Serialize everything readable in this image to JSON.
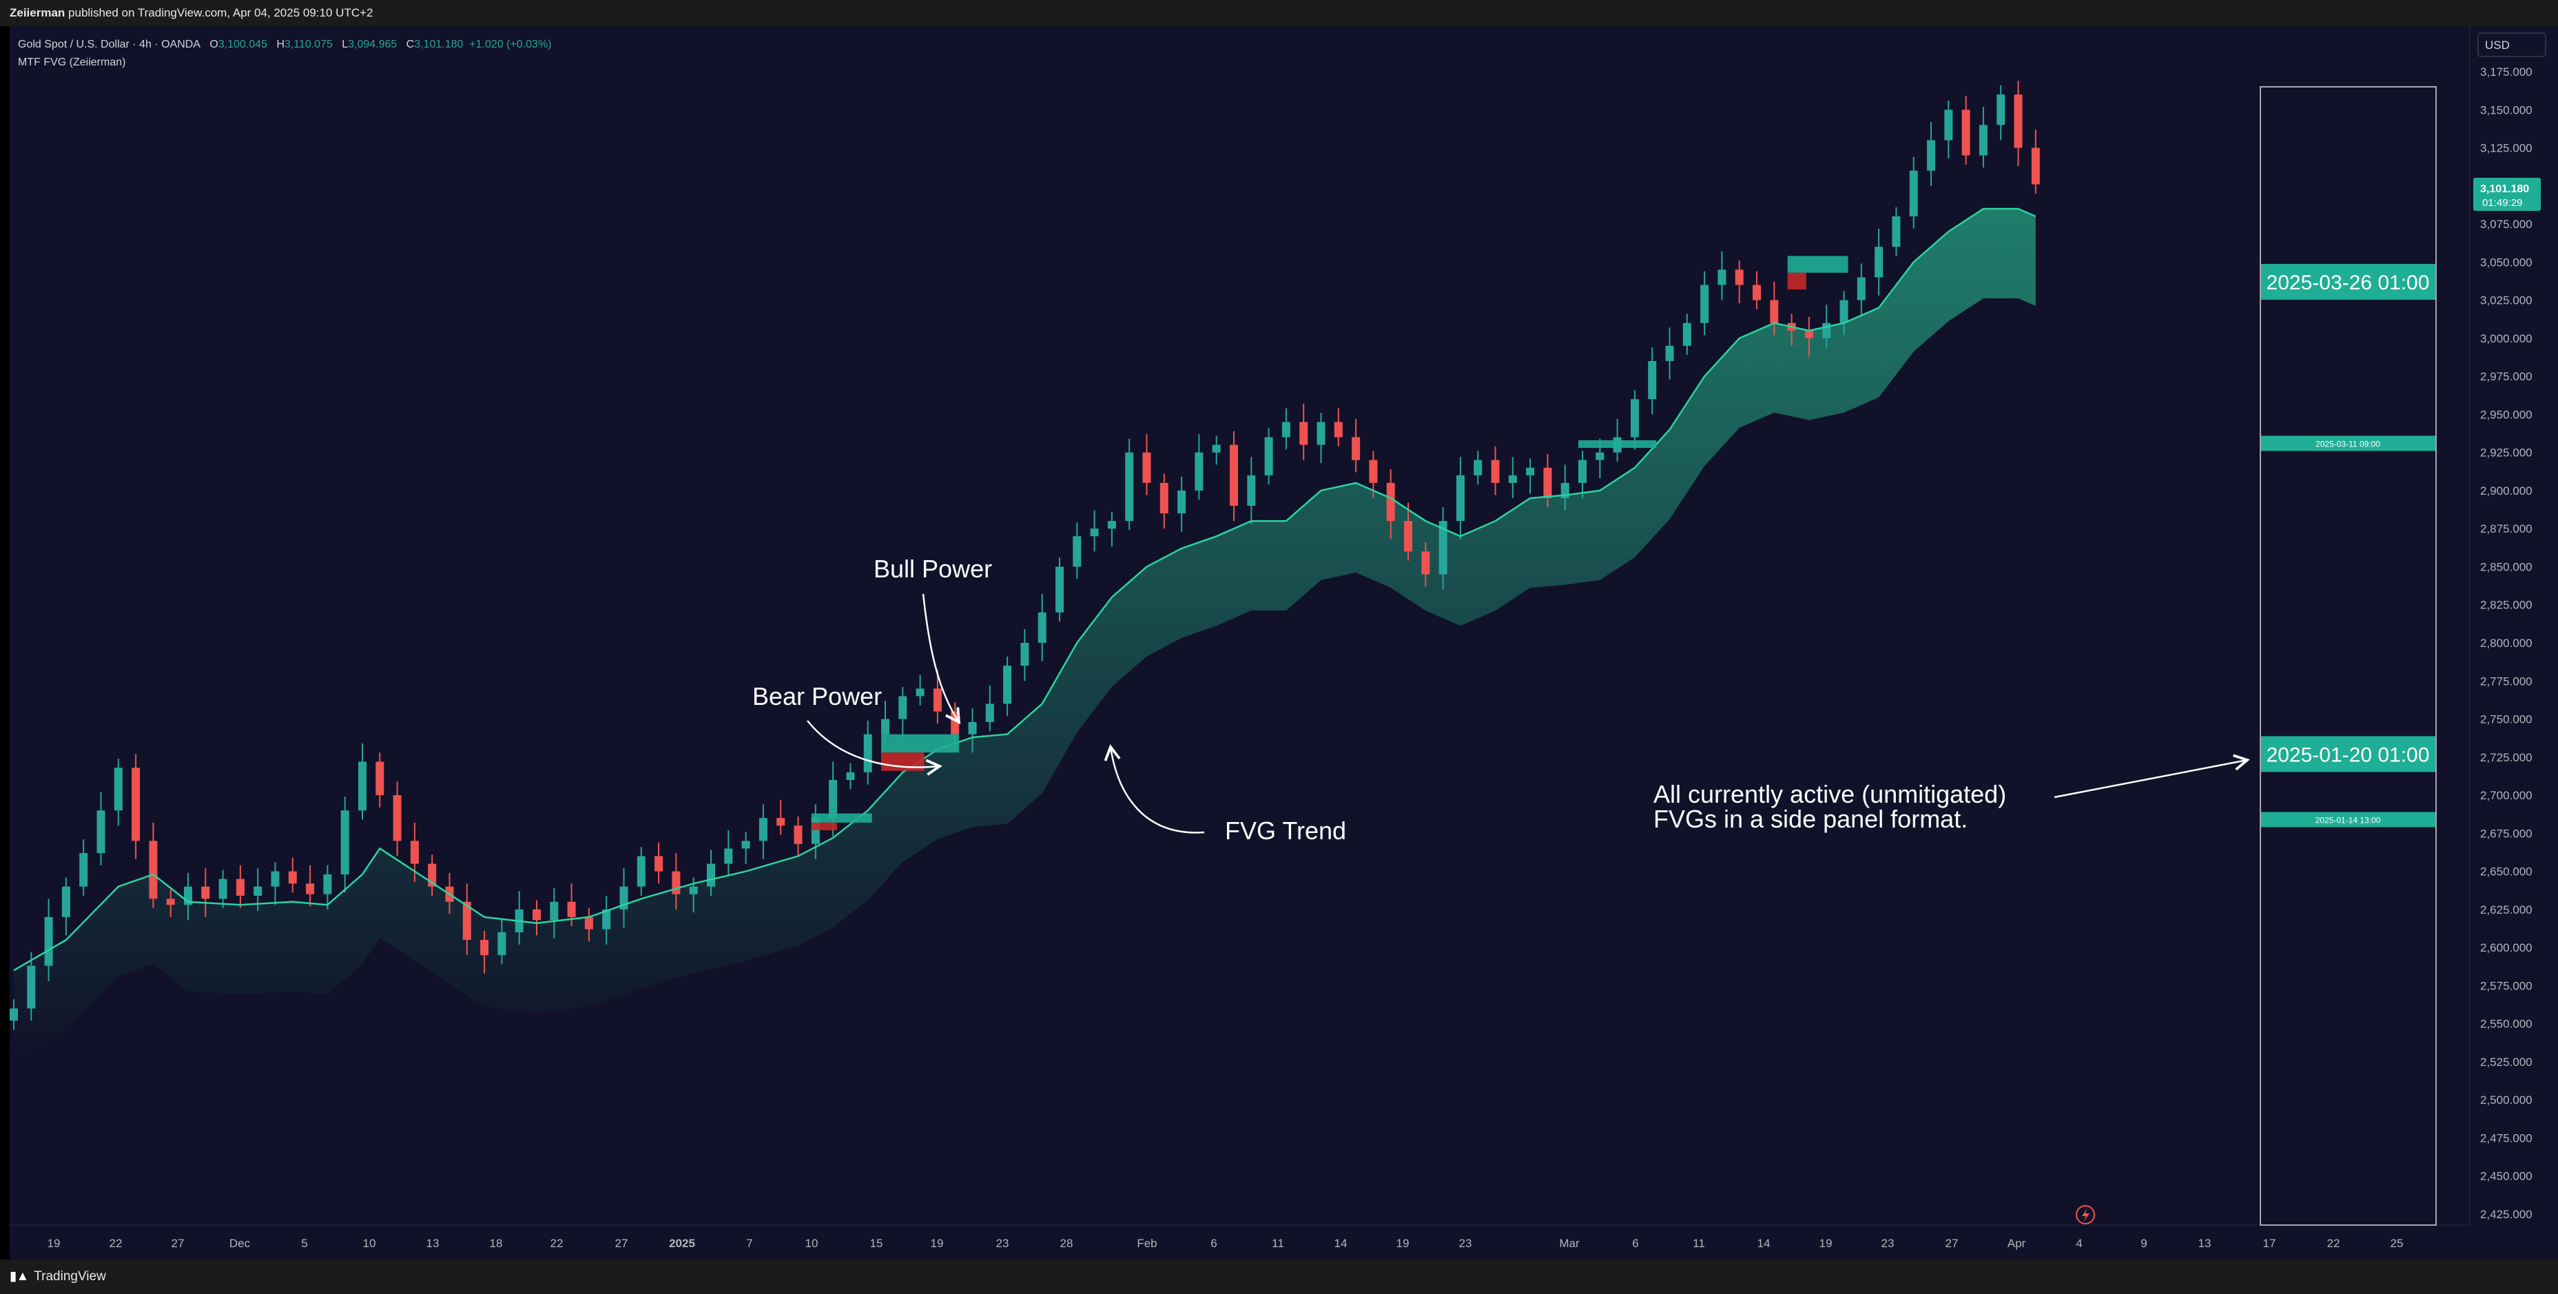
{
  "header": {
    "author": "Zeiierman",
    "published_text": " published on TradingView.com, Apr 04, 2025 09:10 UTC+2"
  },
  "legend": {
    "symbol": "Gold Spot / U.S. Dollar · 4h · OANDA",
    "open_label": "O",
    "open": "3,100.045",
    "high_label": "H",
    "high": "3,110.075",
    "low_label": "L",
    "low": "3,094.965",
    "close_label": "C",
    "close": "3,101.180",
    "change": "+1.020 (+0.03%)",
    "indicator": "MTF FVG (Zeiierman)"
  },
  "currency_button": "USD",
  "price_badge": {
    "price": "3,101.180",
    "countdown": "01:49:29"
  },
  "annotations": {
    "bull_power": "Bull Power",
    "bear_power": "Bear Power",
    "fvg_trend": "FVG Trend",
    "side_panel_line1": "All currently active (unmitigated)",
    "side_panel_line2": "FVGs in a side panel format."
  },
  "side_panel": {
    "labels": [
      {
        "text": "2025-03-26 01:00",
        "price": 3037,
        "size": "large"
      },
      {
        "text": "2025-03-11 09:00",
        "price": 2931,
        "size": "small"
      },
      {
        "text": "2025-01-20 01:00",
        "price": 2727,
        "size": "large"
      },
      {
        "text": "2025-01-14 13:00",
        "price": 2684,
        "size": "small"
      }
    ]
  },
  "footer": {
    "brand": "TradingView"
  },
  "colors": {
    "background": "#111229",
    "bull": "#26a69a",
    "bear": "#ef5350",
    "trend": "#2bd4a0",
    "fvg_bull": "#1fae96",
    "fvg_bear": "#c62828"
  },
  "chart_data": {
    "type": "line",
    "title": "",
    "ylim": [
      2420,
      3175
    ],
    "y_ticks": [
      "3,175.000",
      "3,150.000",
      "3,125.000",
      "3,100.000",
      "3,075.000",
      "3,050.000",
      "3,025.000",
      "3,000.000",
      "2,975.000",
      "2,950.000",
      "2,925.000",
      "2,900.000",
      "2,875.000",
      "2,850.000",
      "2,825.000",
      "2,800.000",
      "2,775.000",
      "2,750.000",
      "2,725.000",
      "2,700.000",
      "2,675.000",
      "2,650.000",
      "2,625.000",
      "2,600.000",
      "2,575.000",
      "2,550.000",
      "2,525.000",
      "2,500.000",
      "2,475.000",
      "2,450.000",
      "2,425.000"
    ],
    "x_ticks": [
      "19",
      "22",
      "27",
      "Dec",
      "5",
      "10",
      "13",
      "18",
      "22",
      "27",
      "2025",
      "7",
      "10",
      "15",
      "19",
      "23",
      "28",
      "Feb",
      "6",
      "11",
      "14",
      "19",
      "23",
      "Mar",
      "6",
      "11",
      "14",
      "19",
      "23",
      "27",
      "Apr",
      "4",
      "9",
      "13",
      "17",
      "22",
      "25"
    ],
    "series": [
      {
        "kind": "price",
        "points": [
          [
            0,
            2560
          ],
          [
            1,
            2588
          ],
          [
            2,
            2620
          ],
          [
            3,
            2640
          ],
          [
            4,
            2662
          ],
          [
            5,
            2690
          ],
          [
            6,
            2718
          ],
          [
            7,
            2670
          ],
          [
            8,
            2632
          ],
          [
            9,
            2628
          ],
          [
            10,
            2640
          ],
          [
            11,
            2632
          ],
          [
            12,
            2645
          ],
          [
            13,
            2634
          ],
          [
            14,
            2640
          ],
          [
            15,
            2650
          ],
          [
            16,
            2642
          ],
          [
            17,
            2635
          ],
          [
            18,
            2648
          ],
          [
            19,
            2690
          ],
          [
            20,
            2722
          ],
          [
            21,
            2700
          ],
          [
            22,
            2670
          ],
          [
            23,
            2655
          ],
          [
            24,
            2640
          ],
          [
            25,
            2630
          ],
          [
            26,
            2605
          ],
          [
            27,
            2595
          ],
          [
            28,
            2610
          ],
          [
            29,
            2625
          ],
          [
            30,
            2618
          ],
          [
            31,
            2630
          ],
          [
            32,
            2620
          ],
          [
            33,
            2612
          ],
          [
            34,
            2625
          ],
          [
            35,
            2640
          ],
          [
            36,
            2660
          ],
          [
            37,
            2650
          ],
          [
            38,
            2635
          ],
          [
            39,
            2640
          ],
          [
            40,
            2655
          ],
          [
            41,
            2665
          ],
          [
            42,
            2670
          ],
          [
            43,
            2685
          ],
          [
            44,
            2680
          ],
          [
            45,
            2668
          ],
          [
            46,
            2685
          ],
          [
            47,
            2710
          ],
          [
            48,
            2715
          ],
          [
            49,
            2740
          ],
          [
            50,
            2750
          ],
          [
            51,
            2765
          ],
          [
            52,
            2770
          ],
          [
            53,
            2755
          ],
          [
            54,
            2740
          ],
          [
            55,
            2748
          ],
          [
            56,
            2760
          ],
          [
            57,
            2785
          ],
          [
            58,
            2800
          ],
          [
            59,
            2820
          ],
          [
            60,
            2850
          ],
          [
            61,
            2870
          ],
          [
            62,
            2875
          ],
          [
            63,
            2880
          ],
          [
            64,
            2925
          ],
          [
            65,
            2905
          ],
          [
            66,
            2885
          ],
          [
            67,
            2900
          ],
          [
            68,
            2925
          ],
          [
            69,
            2930
          ],
          [
            70,
            2890
          ],
          [
            71,
            2910
          ],
          [
            72,
            2935
          ],
          [
            73,
            2945
          ],
          [
            74,
            2930
          ],
          [
            75,
            2945
          ],
          [
            76,
            2935
          ],
          [
            77,
            2920
          ],
          [
            78,
            2905
          ],
          [
            79,
            2880
          ],
          [
            80,
            2860
          ],
          [
            81,
            2845
          ],
          [
            82,
            2880
          ],
          [
            83,
            2910
          ],
          [
            84,
            2920
          ],
          [
            85,
            2905
          ],
          [
            86,
            2910
          ],
          [
            87,
            2915
          ],
          [
            88,
            2895
          ],
          [
            89,
            2905
          ],
          [
            90,
            2920
          ],
          [
            91,
            2925
          ],
          [
            92,
            2935
          ],
          [
            93,
            2960
          ],
          [
            94,
            2985
          ],
          [
            95,
            2995
          ],
          [
            96,
            3010
          ],
          [
            97,
            3035
          ],
          [
            98,
            3045
          ],
          [
            99,
            3035
          ],
          [
            100,
            3025
          ],
          [
            101,
            3010
          ],
          [
            102,
            3005
          ],
          [
            103,
            3000
          ],
          [
            104,
            3010
          ],
          [
            105,
            3025
          ],
          [
            106,
            3040
          ],
          [
            107,
            3060
          ],
          [
            108,
            3080
          ],
          [
            109,
            3110
          ],
          [
            110,
            3130
          ],
          [
            111,
            3150
          ],
          [
            112,
            3120
          ],
          [
            113,
            3140
          ],
          [
            114,
            3160
          ],
          [
            115,
            3125
          ],
          [
            116,
            3101
          ]
        ]
      },
      {
        "kind": "fvg_trend",
        "points": [
          [
            0,
            2585
          ],
          [
            3,
            2605
          ],
          [
            6,
            2640
          ],
          [
            8,
            2648
          ],
          [
            10,
            2630
          ],
          [
            13,
            2628
          ],
          [
            16,
            2630
          ],
          [
            18,
            2628
          ],
          [
            20,
            2648
          ],
          [
            21,
            2665
          ],
          [
            23,
            2650
          ],
          [
            25,
            2635
          ],
          [
            27,
            2620
          ],
          [
            30,
            2616
          ],
          [
            33,
            2620
          ],
          [
            36,
            2632
          ],
          [
            39,
            2642
          ],
          [
            42,
            2650
          ],
          [
            45,
            2660
          ],
          [
            47,
            2672
          ],
          [
            49,
            2690
          ],
          [
            51,
            2715
          ],
          [
            53,
            2730
          ],
          [
            55,
            2738
          ],
          [
            57,
            2740
          ],
          [
            59,
            2760
          ],
          [
            61,
            2800
          ],
          [
            63,
            2830
          ],
          [
            65,
            2850
          ],
          [
            67,
            2862
          ],
          [
            69,
            2870
          ],
          [
            71,
            2880
          ],
          [
            73,
            2880
          ],
          [
            75,
            2900
          ],
          [
            77,
            2905
          ],
          [
            79,
            2895
          ],
          [
            81,
            2880
          ],
          [
            83,
            2870
          ],
          [
            85,
            2880
          ],
          [
            87,
            2895
          ],
          [
            89,
            2897
          ],
          [
            91,
            2900
          ],
          [
            93,
            2915
          ],
          [
            95,
            2940
          ],
          [
            97,
            2975
          ],
          [
            99,
            3000
          ],
          [
            101,
            3010
          ],
          [
            103,
            3005
          ],
          [
            105,
            3010
          ],
          [
            107,
            3020
          ],
          [
            109,
            3050
          ],
          [
            111,
            3070
          ],
          [
            113,
            3085
          ],
          [
            115,
            3085
          ],
          [
            116,
            3080
          ]
        ]
      }
    ],
    "fvg_zones": [
      {
        "type": "bull",
        "x0": 46,
        "x1": 49,
        "top": 2688,
        "bottom": 2682
      },
      {
        "type": "bear",
        "x0": 46,
        "x1": 47,
        "top": 2682,
        "bottom": 2677
      },
      {
        "type": "bull",
        "x0": 50,
        "x1": 54,
        "top": 2740,
        "bottom": 2728
      },
      {
        "type": "bear",
        "x0": 50,
        "x1": 52,
        "top": 2728,
        "bottom": 2716
      },
      {
        "type": "bull",
        "x0": 90,
        "x1": 94,
        "top": 2933,
        "bottom": 2928
      },
      {
        "type": "bull",
        "x0": 102,
        "x1": 105,
        "top": 3054,
        "bottom": 3043
      },
      {
        "type": "bear",
        "x0": 102,
        "x1": 102.6,
        "top": 3043,
        "bottom": 3032
      }
    ]
  }
}
